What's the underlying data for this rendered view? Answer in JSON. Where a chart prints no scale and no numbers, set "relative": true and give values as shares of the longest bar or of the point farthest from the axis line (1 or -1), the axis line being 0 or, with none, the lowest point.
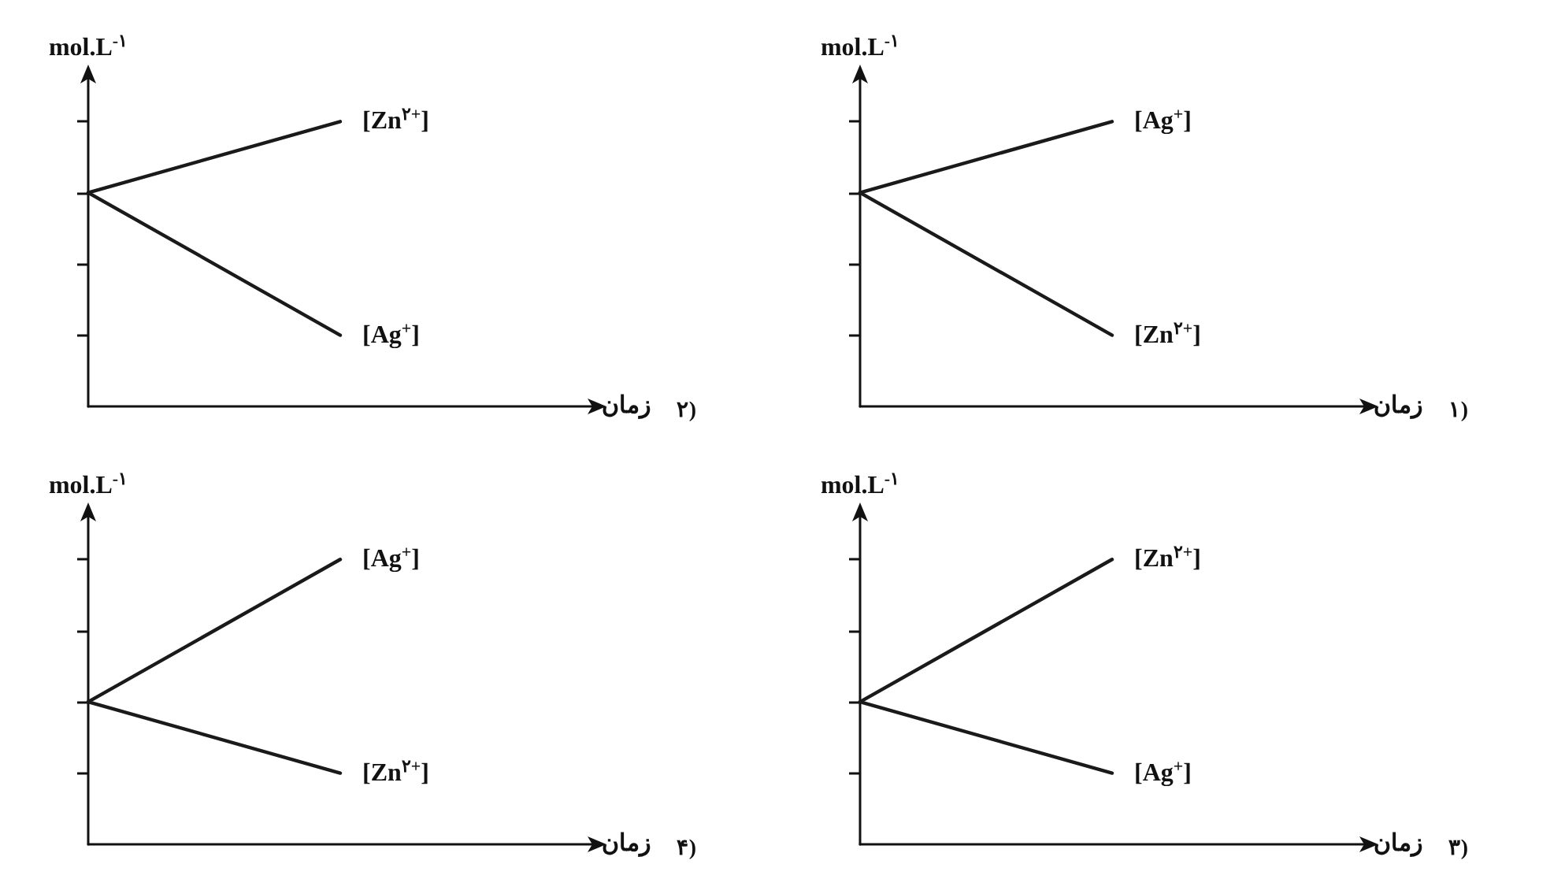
{
  "chart_data": [
    {
      "type": "line",
      "relative": true,
      "ylabel": "mol.L$^{-۱}$",
      "xlabel": "زمان",
      "annotations": [
        "۱)"
      ],
      "categories": [
        null,
        null,
        null
      ],
      "marker": "none",
      "line_style": "solid",
      "series": [
        {
          "name": "[Ag$^{+}$]",
          "color": "#1a1a1a",
          "values": [
            0.75,
            1,
            null
          ]
        },
        {
          "name": "[Zn$^{۲+}$]",
          "color": "#1a1a1a",
          "values": [
            0.75,
            0.25,
            null
          ]
        }
      ]
    },
    {
      "type": "line",
      "relative": true,
      "ylabel": "mol.L$^{-۱}$",
      "xlabel": "زمان",
      "annotations": [
        "۲)"
      ],
      "categories": [
        null,
        null,
        null
      ],
      "marker": "none",
      "line_style": "solid",
      "series": [
        {
          "name": "[Zn$^{۲+}$]",
          "color": "#1a1a1a",
          "values": [
            0.75,
            1,
            null
          ]
        },
        {
          "name": "[Ag$^{+}$]",
          "color": "#1a1a1a",
          "values": [
            0.75,
            0.25,
            null
          ]
        }
      ]
    },
    {
      "type": "line",
      "relative": true,
      "ylabel": "mol.L$^{-۱}$",
      "xlabel": "زمان",
      "annotations": [
        "۳)"
      ],
      "categories": [
        null,
        null,
        null
      ],
      "marker": "none",
      "line_style": "solid",
      "series": [
        {
          "name": "[Zn$^{۲+}$]",
          "color": "#1a1a1a",
          "values": [
            0.5,
            1,
            null
          ]
        },
        {
          "name": "[Ag$^{+}$]",
          "color": "#1a1a1a",
          "values": [
            0.5,
            0.25,
            null
          ]
        }
      ]
    },
    {
      "type": "line",
      "relative": true,
      "ylabel": "mol.L$^{-۱}$",
      "xlabel": "زمان",
      "annotations": [
        "۴)"
      ],
      "categories": [
        null,
        null,
        null
      ],
      "marker": "none",
      "line_style": "solid",
      "series": [
        {
          "name": "[Ag$^{+}$]",
          "color": "#1a1a1a",
          "values": [
            0.5,
            1,
            null
          ]
        },
        {
          "name": "[Zn$^{۲+}$]",
          "color": "#1a1a1a",
          "values": [
            0.5,
            0.25,
            null
          ]
        }
      ]
    }
  ]
}
